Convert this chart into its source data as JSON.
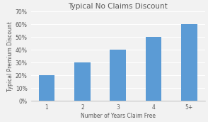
{
  "title": "Typical No Claims Discount",
  "xlabel": "Number of Years Claim Free",
  "ylabel": "Typical Premium Discount",
  "categories": [
    "1",
    "2",
    "3",
    "4",
    "5+"
  ],
  "values": [
    20,
    30,
    40,
    50,
    60
  ],
  "bar_color": "#5B9BD5",
  "ylim": [
    0,
    70
  ],
  "yticks": [
    0,
    10,
    20,
    30,
    40,
    50,
    60,
    70
  ],
  "background_color": "#f2f2f2",
  "plot_bg_color": "#f2f2f2",
  "grid_color": "#ffffff",
  "title_fontsize": 7.5,
  "label_fontsize": 5.5,
  "tick_fontsize": 5.5,
  "title_color": "#595959",
  "label_color": "#595959",
  "tick_color": "#595959"
}
